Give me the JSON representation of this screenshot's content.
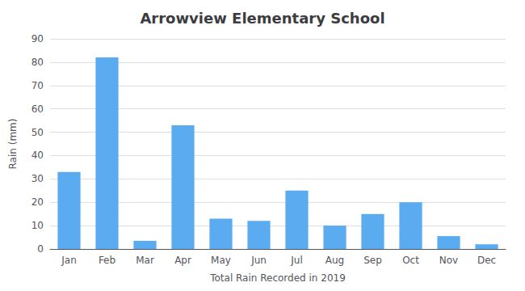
{
  "chart_data": {
    "type": "bar",
    "title": "Arrowview Elementary School",
    "xlabel": "Total Rain Recorded in 2019",
    "ylabel": "Rain (mm)",
    "categories": [
      "Jan",
      "Feb",
      "Mar",
      "Apr",
      "May",
      "Jun",
      "Jul",
      "Aug",
      "Sep",
      "Oct",
      "Nov",
      "Dec"
    ],
    "values": [
      33,
      82,
      3.5,
      53,
      13,
      12,
      25,
      10,
      15,
      20,
      5.5,
      2
    ],
    "color": "#5aabf0",
    "ylim": [
      0,
      90
    ],
    "yticks": [
      0,
      10,
      20,
      30,
      40,
      50,
      60,
      70,
      80,
      90
    ],
    "grid": true
  }
}
